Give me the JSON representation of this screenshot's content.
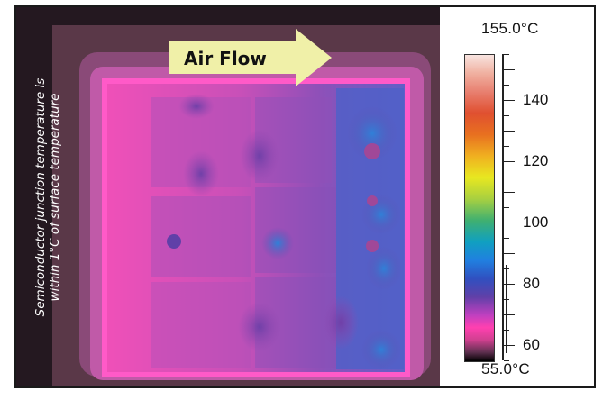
{
  "annotation": {
    "line1": "Semiconductor junction temperature is",
    "line2": "within 1°C of surface temperature"
  },
  "airflow": {
    "label": "Air Flow"
  },
  "scale": {
    "max_label": "155.0°C",
    "min_label": "55.0°C",
    "min_value": 55,
    "max_value": 155,
    "ticks": [
      "140",
      "120",
      "100",
      "80",
      "60"
    ],
    "tick_values": [
      140,
      120,
      100,
      80,
      60
    ]
  },
  "colors": {
    "background_dark": "#2a1a22",
    "board_magenta": "#e040b0",
    "cool_blue": "#3070d0",
    "arrow_yellow": "#f0f0a0"
  }
}
